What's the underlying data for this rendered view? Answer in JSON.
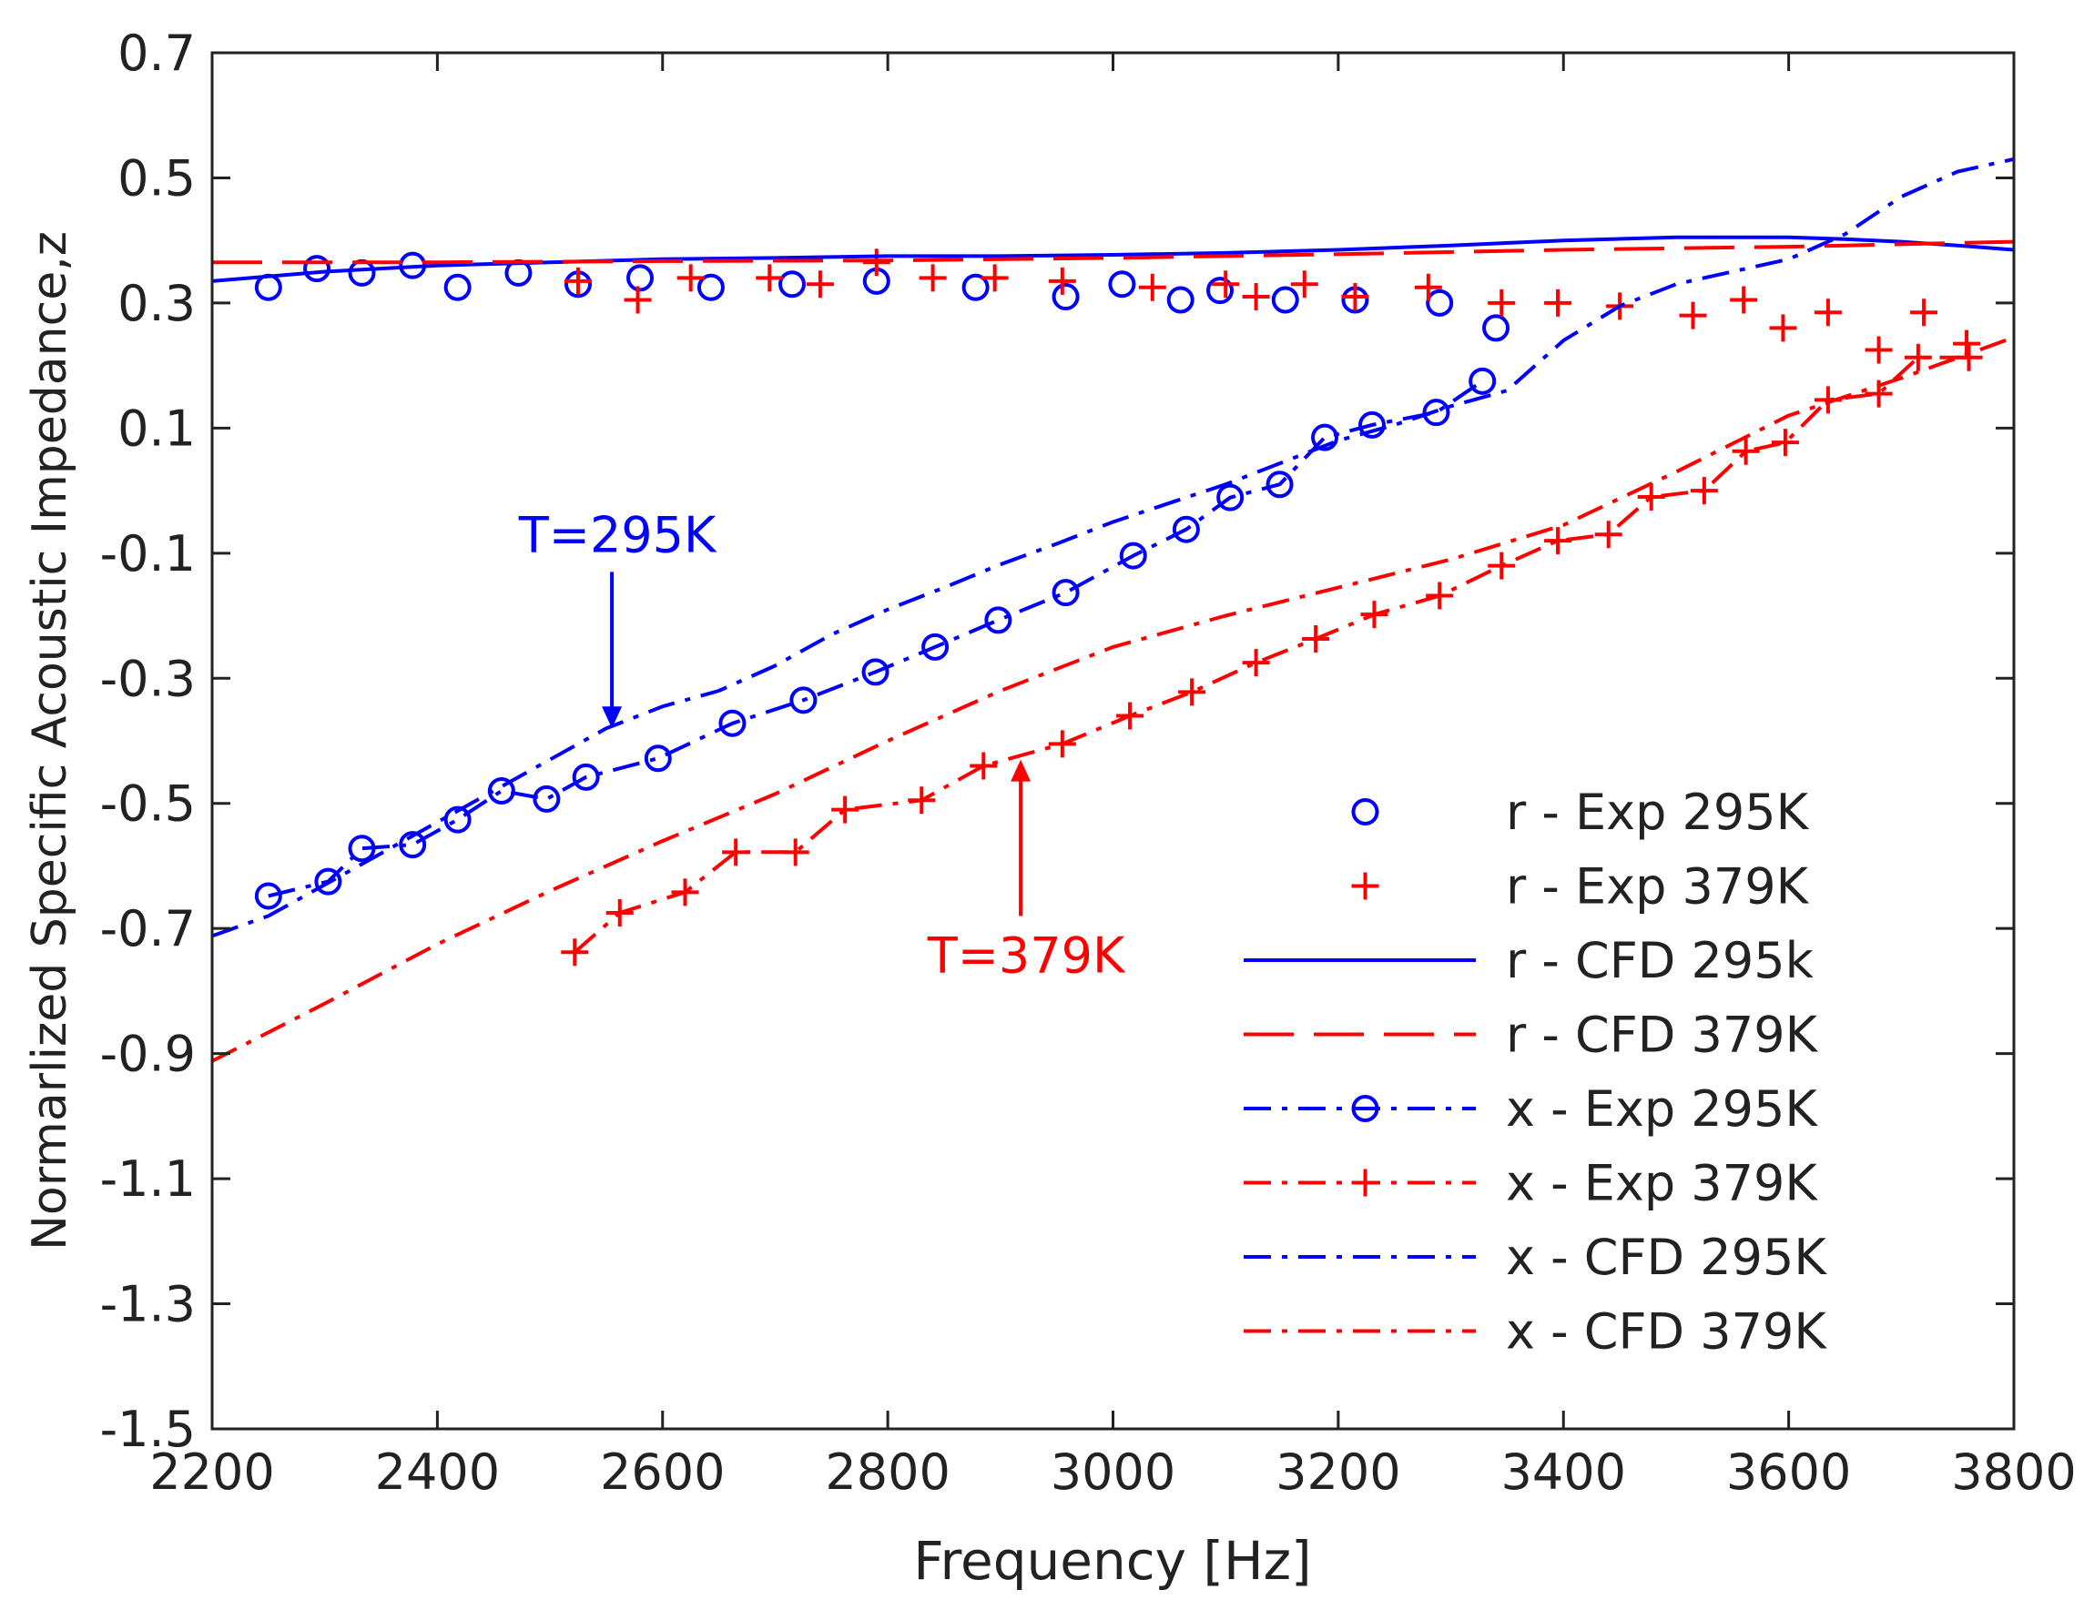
{
  "chart_data": {
    "type": "line",
    "title": "",
    "xlabel": "Frequency [Hz]",
    "ylabel": "Normarlized Specific Acoustic Impedance,z",
    "xlim": [
      2200,
      3800
    ],
    "ylim": [
      -1.5,
      0.7
    ],
    "xticks": [
      2200,
      2400,
      2600,
      2800,
      3000,
      3200,
      3400,
      3600,
      3800
    ],
    "xtick_labels": [
      "2200",
      "2400",
      "2600",
      "2800",
      "3000",
      "3200",
      "3400",
      "3600",
      "3800"
    ],
    "yticks": [
      -1.5,
      -1.3,
      -1.1,
      -0.9,
      -0.7,
      -0.5,
      -0.3,
      -0.1,
      0.1,
      0.3,
      0.5,
      0.7
    ],
    "ytick_labels": [
      "-1.5",
      "-1.3",
      "-1.1",
      "-0.9",
      "-0.7",
      "-0.5",
      "-0.3",
      "-0.1",
      "0.1",
      "0.3",
      "0.5",
      "0.7"
    ],
    "grid": false,
    "legend_position": "bottom-right",
    "series": [
      {
        "name": "r - Exp 295K",
        "color": "#0000ff",
        "line": "none",
        "marker": "circle",
        "x": [
          2250,
          2293,
          2333,
          2378,
          2418,
          2472,
          2525,
          2580,
          2643,
          2715,
          2790,
          2878,
          2958,
          3008,
          3060,
          3095,
          3153,
          3215,
          3290,
          3340
        ],
        "y": [
          0.325,
          0.355,
          0.348,
          0.36,
          0.325,
          0.348,
          0.33,
          0.34,
          0.325,
          0.33,
          0.335,
          0.325,
          0.31,
          0.33,
          0.305,
          0.32,
          0.305,
          0.305,
          0.3,
          0.26
        ]
      },
      {
        "name": "r - Exp 379K",
        "color": "#ff0000",
        "line": "none",
        "marker": "plus",
        "x": [
          2525,
          2578,
          2625,
          2695,
          2740,
          2790,
          2840,
          2895,
          2955,
          3035,
          3100,
          3127,
          3170,
          3215,
          3280,
          3345,
          3395,
          3450,
          3515,
          3560,
          3595,
          3635,
          3680,
          3720,
          3758
        ],
        "y": [
          0.335,
          0.305,
          0.34,
          0.34,
          0.33,
          0.365,
          0.34,
          0.34,
          0.335,
          0.325,
          0.33,
          0.31,
          0.33,
          0.31,
          0.325,
          0.3,
          0.3,
          0.295,
          0.28,
          0.305,
          0.26,
          0.285,
          0.225,
          0.285,
          0.235
        ]
      },
      {
        "name": "r - CFD 295k",
        "color": "#0000ff",
        "line": "solid",
        "marker": "none",
        "x": [
          2200,
          2300,
          2400,
          2500,
          2600,
          2700,
          2800,
          2900,
          3000,
          3100,
          3200,
          3300,
          3400,
          3500,
          3550,
          3600,
          3650,
          3700,
          3750,
          3800
        ],
        "y": [
          0.335,
          0.35,
          0.36,
          0.365,
          0.37,
          0.372,
          0.375,
          0.375,
          0.377,
          0.38,
          0.385,
          0.392,
          0.4,
          0.405,
          0.405,
          0.405,
          0.402,
          0.398,
          0.392,
          0.385
        ]
      },
      {
        "name": "r - CFD 379K",
        "color": "#ff0000",
        "line": "dashed",
        "marker": "none",
        "x": [
          2200,
          2400,
          2600,
          2800,
          3000,
          3200,
          3400,
          3600,
          3800
        ],
        "y": [
          0.365,
          0.365,
          0.367,
          0.368,
          0.372,
          0.378,
          0.385,
          0.39,
          0.398
        ]
      },
      {
        "name": "x - Exp 295K",
        "color": "#0000ff",
        "line": "dashdot",
        "marker": "circle",
        "x": [
          2250,
          2303,
          2333,
          2378,
          2418,
          2457,
          2497,
          2532,
          2596,
          2662,
          2725,
          2789,
          2842,
          2898,
          2958,
          3018,
          3065,
          3104,
          3148,
          3188,
          3230,
          3287,
          3328
        ],
        "y": [
          -0.648,
          -0.625,
          -0.572,
          -0.566,
          -0.526,
          -0.48,
          -0.493,
          -0.458,
          -0.428,
          -0.372,
          -0.335,
          -0.29,
          -0.25,
          -0.207,
          -0.163,
          -0.104,
          -0.062,
          -0.011,
          0.01,
          0.085,
          0.105,
          0.125,
          0.175
        ]
      },
      {
        "name": "x - Exp 379K",
        "color": "#ff0000",
        "line": "dashdot",
        "marker": "plus",
        "x": [
          2522,
          2562,
          2620,
          2665,
          2718,
          2762,
          2830,
          2885,
          2955,
          3015,
          3070,
          3127,
          3180,
          3232,
          3290,
          3345,
          3395,
          3440,
          3478,
          3525,
          3562,
          3597,
          3635,
          3680,
          3715,
          3760
        ],
        "y": [
          -0.738,
          -0.675,
          -0.642,
          -0.578,
          -0.578,
          -0.51,
          -0.495,
          -0.44,
          -0.405,
          -0.36,
          -0.322,
          -0.275,
          -0.237,
          -0.198,
          -0.168,
          -0.12,
          -0.08,
          -0.07,
          -0.01,
          0.0,
          0.063,
          0.077,
          0.145,
          0.155,
          0.213,
          0.213
        ]
      },
      {
        "name": "x - CFD 295K",
        "color": "#0000ff",
        "line": "dashdot",
        "marker": "none",
        "x": [
          2200,
          2250,
          2300,
          2350,
          2400,
          2450,
          2500,
          2550,
          2600,
          2650,
          2700,
          2750,
          2800,
          2850,
          2900,
          2950,
          3000,
          3050,
          3100,
          3150,
          3200,
          3250,
          3300,
          3350,
          3400,
          3450,
          3500,
          3550,
          3600,
          3650,
          3700,
          3750,
          3800
        ],
        "y": [
          -0.712,
          -0.68,
          -0.63,
          -0.58,
          -0.53,
          -0.48,
          -0.43,
          -0.38,
          -0.345,
          -0.32,
          -0.28,
          -0.23,
          -0.19,
          -0.155,
          -0.118,
          -0.085,
          -0.05,
          -0.02,
          0.01,
          0.045,
          0.08,
          0.105,
          0.135,
          0.16,
          0.24,
          0.295,
          0.33,
          0.35,
          0.37,
          0.41,
          0.47,
          0.51,
          0.53
        ]
      },
      {
        "name": "x - CFD 379K",
        "color": "#ff0000",
        "line": "dashdot",
        "marker": "none",
        "x": [
          2200,
          2300,
          2400,
          2500,
          2600,
          2700,
          2800,
          2900,
          3000,
          3100,
          3200,
          3300,
          3400,
          3500,
          3600,
          3700,
          3800
        ],
        "y": [
          -0.912,
          -0.82,
          -0.725,
          -0.64,
          -0.56,
          -0.485,
          -0.4,
          -0.32,
          -0.25,
          -0.2,
          -0.155,
          -0.11,
          -0.055,
          0.03,
          0.12,
          0.18,
          0.245
        ]
      }
    ],
    "annotations": [
      {
        "text": "T=295K",
        "color": "#0000ff",
        "arrow_tail": [
          2555,
          -0.13
        ],
        "arrow_head": [
          2555,
          -0.38
        ]
      },
      {
        "text": "T=379K",
        "color": "#ff0000",
        "arrow_tail": [
          2918,
          -0.68
        ],
        "arrow_head": [
          2918,
          -0.43
        ]
      }
    ]
  }
}
